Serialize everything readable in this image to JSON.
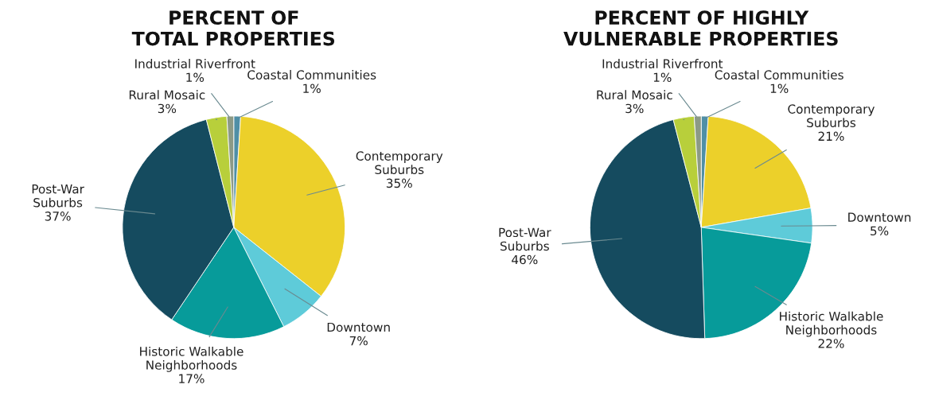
{
  "chart_data": [
    {
      "type": "pie",
      "title": "PERCENT OF\nTOTAL PROPERTIES",
      "categories": [
        "Coastal Communities",
        "Contemporary\nSuburbs",
        "Downtown",
        "Historic Walkable\nNeighborhoods",
        "Post-War\nSuburbs",
        "Rural Mosaic",
        "Industrial Riverfront"
      ],
      "values": [
        1,
        35,
        7,
        17,
        37,
        3,
        1
      ],
      "value_labels": [
        "1%",
        "35%",
        "7%",
        "17%",
        "37%",
        "3%",
        "1%"
      ],
      "colors": [
        "#4f8fa6",
        "#ecd02a",
        "#5ecbd9",
        "#079b9a",
        "#154b5f",
        "#b8cf3b",
        "#8c9a86"
      ]
    },
    {
      "type": "pie",
      "title": "PERCENT OF HIGHLY\nVULNERABLE PROPERTIES",
      "categories": [
        "Coastal Communities",
        "Contemporary\nSuburbs",
        "Downtown",
        "Historic Walkable\nNeighborhoods",
        "Post-War\nSuburbs",
        "Rural Mosaic",
        "Industrial Riverfront"
      ],
      "values": [
        1,
        21,
        5,
        22,
        46,
        3,
        1
      ],
      "value_labels": [
        "1%",
        "21%",
        "5%",
        "22%",
        "46%",
        "3%",
        "1%"
      ],
      "colors": [
        "#4f8fa6",
        "#ecd02a",
        "#5ecbd9",
        "#079b9a",
        "#154b5f",
        "#b8cf3b",
        "#8c9a86"
      ]
    }
  ]
}
